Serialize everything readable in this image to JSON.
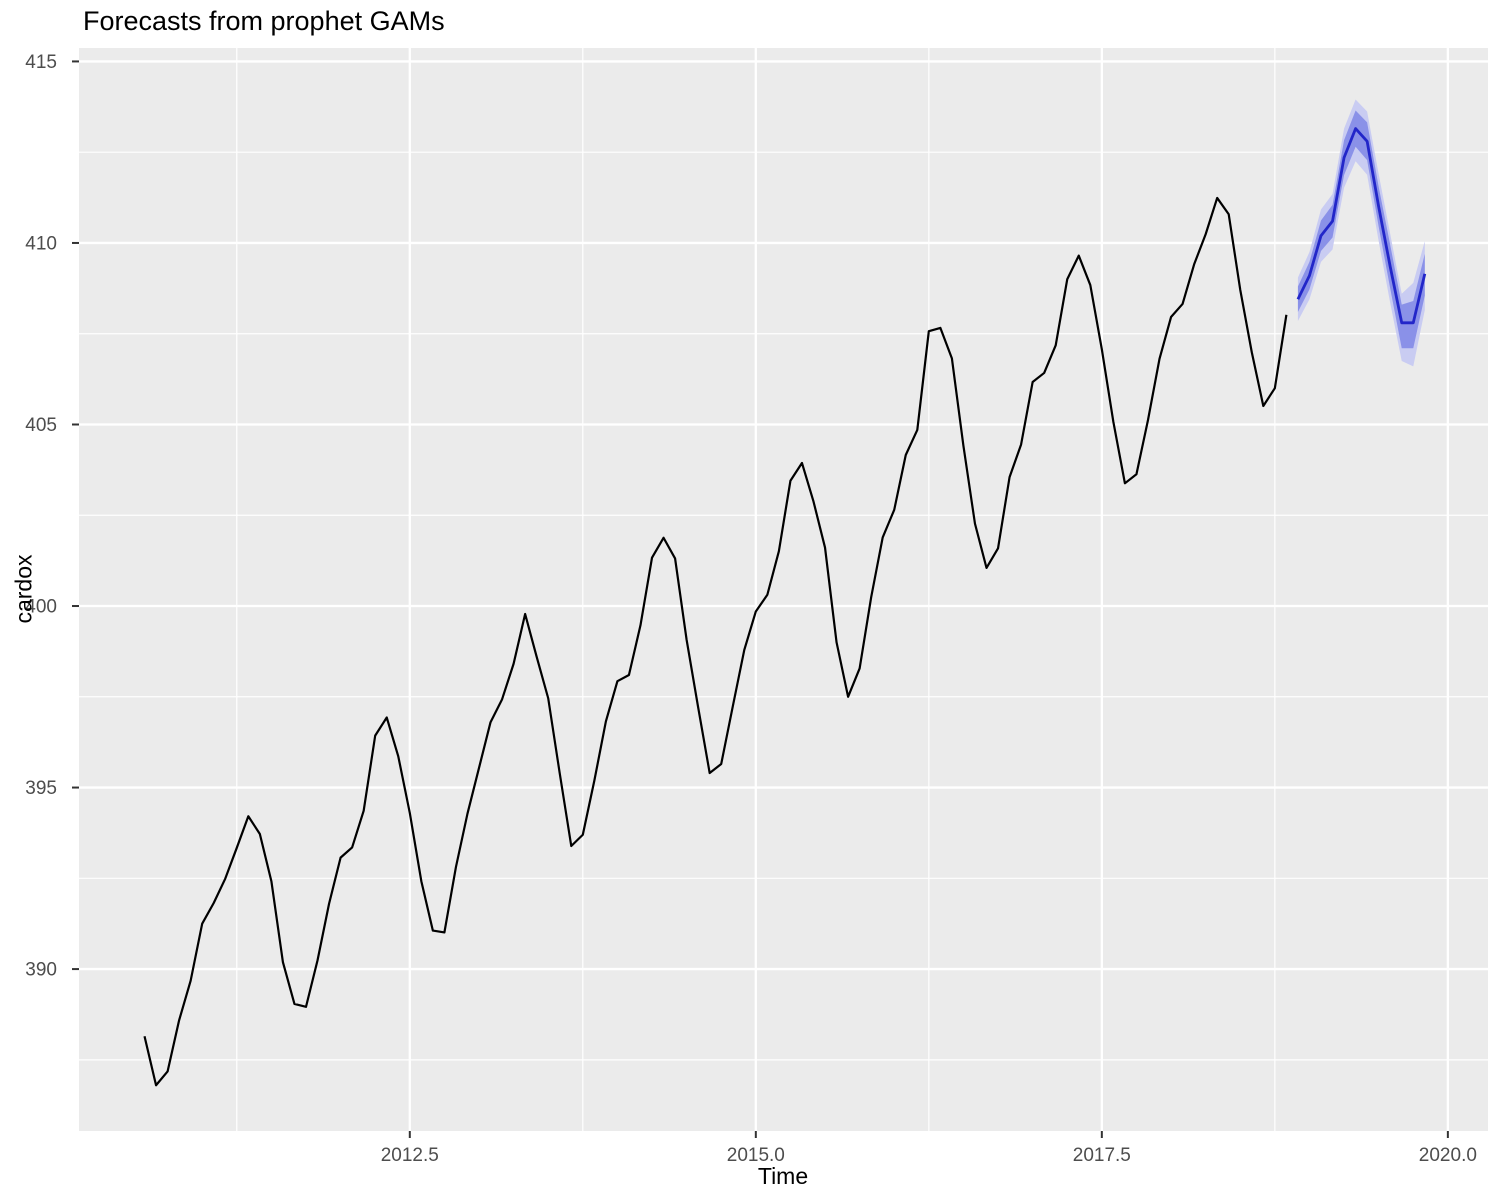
{
  "title": "Forecasts from prophet GAMs",
  "chart_data": {
    "type": "line",
    "title": "Forecasts from prophet GAMs",
    "xlabel": "Time",
    "ylabel": "cardox",
    "xlim": [
      2010.11,
      2020.29
    ],
    "ylim": [
      385.54,
      415.37
    ],
    "grid": true,
    "legend": "none",
    "x_tick_values": [
      2012.5,
      2015.0,
      2017.5,
      2020.0
    ],
    "x_tick_labels": [
      "2012.5",
      "2015.0",
      "2017.5",
      "2020.0"
    ],
    "y_tick_values": [
      390,
      395,
      400,
      405,
      410,
      415
    ],
    "y_tick_labels": [
      "390",
      "395",
      "400",
      "405",
      "410",
      "415"
    ],
    "x_minor_gridlines": [
      2011.25,
      2013.75,
      2016.25,
      2018.75
    ],
    "y_minor_gridlines": [
      387.5,
      392.5,
      397.5,
      402.5,
      407.5,
      412.5
    ],
    "colors": {
      "panel_background": "#EBEBEB",
      "gridline": "#FFFFFF",
      "tick_mark": "#333333",
      "tick_label": "#4D4D4D",
      "observed_line": "#000000",
      "forecast_line": "#2226C9",
      "band_80": "#8A91E8",
      "band_95": "#C9CCF2"
    },
    "series": [
      {
        "name": "observed",
        "color": "#000000",
        "width": 2.2,
        "x_start": 2010.58333,
        "x_step": 0.0833333,
        "values": [
          388.15,
          386.8,
          387.18,
          388.59,
          389.68,
          391.25,
          391.82,
          392.49,
          393.34,
          394.21,
          393.72,
          392.42,
          390.19,
          389.04,
          388.96,
          390.24,
          391.8,
          393.07,
          393.35,
          394.36,
          396.43,
          396.93,
          395.86,
          394.3,
          392.42,
          391.06,
          391.01,
          392.81,
          394.28,
          395.54,
          396.8,
          397.43,
          398.41,
          399.78,
          398.6,
          397.46,
          395.39,
          393.39,
          393.7,
          395.19,
          396.82,
          397.93,
          398.1,
          399.47,
          401.33,
          401.88,
          401.31,
          399.07,
          397.21,
          395.4,
          395.65,
          397.23,
          398.79,
          399.85,
          400.31,
          401.51,
          403.45,
          403.94,
          402.88,
          401.61,
          399.0,
          397.5,
          398.28,
          400.24,
          401.89,
          402.65,
          404.16,
          404.85,
          407.57,
          407.66,
          406.82,
          404.41,
          402.27,
          401.05,
          401.59,
          403.55,
          404.45,
          406.17,
          406.42,
          407.18,
          409.0,
          409.65,
          408.84,
          407.07,
          405.07,
          403.38,
          403.63,
          405.12,
          406.81,
          407.96,
          408.32,
          409.41,
          410.24,
          411.24,
          410.79,
          408.71,
          406.99,
          405.51,
          406.0,
          408.02
        ]
      },
      {
        "name": "forecast-mean",
        "color": "#2226C9",
        "width": 2.8,
        "x_start": 2018.91667,
        "x_step": 0.0833333,
        "values": [
          408.45,
          409.1,
          410.2,
          410.6,
          412.35,
          413.15,
          412.8,
          411.0,
          409.35,
          407.8,
          407.8,
          409.15
        ]
      }
    ],
    "bands": [
      {
        "name": "95",
        "color": "#C9CCF2",
        "x_start": 2018.91667,
        "x_step": 0.0833333,
        "lower": [
          407.85,
          408.45,
          409.48,
          409.82,
          411.52,
          412.25,
          411.88,
          410.05,
          408.35,
          406.75,
          406.6,
          408.15
        ],
        "upper": [
          409.05,
          409.75,
          410.92,
          411.35,
          413.15,
          413.95,
          413.62,
          411.9,
          410.25,
          408.6,
          408.9,
          410.05
        ]
      },
      {
        "name": "80",
        "color": "#8A91E8",
        "x_start": 2018.91667,
        "x_step": 0.0833333,
        "lower": [
          408.1,
          408.72,
          409.78,
          410.15,
          411.87,
          412.65,
          412.28,
          410.45,
          408.75,
          407.1,
          407.1,
          408.55
        ],
        "upper": [
          408.8,
          409.48,
          410.62,
          411.05,
          412.83,
          413.65,
          413.32,
          411.55,
          409.95,
          408.3,
          408.4,
          409.7
        ]
      }
    ]
  }
}
